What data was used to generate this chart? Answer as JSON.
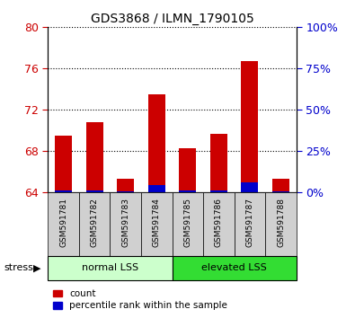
{
  "title": "GDS3868 / ILMN_1790105",
  "samples": [
    "GSM591781",
    "GSM591782",
    "GSM591783",
    "GSM591784",
    "GSM591785",
    "GSM591786",
    "GSM591787",
    "GSM591788"
  ],
  "red_top": [
    69.5,
    70.8,
    65.3,
    73.5,
    68.3,
    69.7,
    76.7,
    65.3
  ],
  "blue_top": [
    64.15,
    64.2,
    64.1,
    64.7,
    64.15,
    64.2,
    65.0,
    64.1
  ],
  "baseline": 64.0,
  "ylim_left": [
    64,
    80
  ],
  "yticks_left": [
    64,
    68,
    72,
    76,
    80
  ],
  "ylim_right": [
    0,
    100
  ],
  "yticks_right": [
    0,
    25,
    50,
    75,
    100
  ],
  "ytick_labels_right": [
    "0%",
    "25%",
    "50%",
    "75%",
    "100%"
  ],
  "group1_label": "normal LSS",
  "group2_label": "elevated LSS",
  "stress_label": "stress",
  "legend_count": "count",
  "legend_pct": "percentile rank within the sample",
  "bar_width": 0.55,
  "red_color": "#cc0000",
  "blue_color": "#0000cc",
  "group1_bg": "#ccffcc",
  "group2_bg": "#33dd33",
  "tick_color_left": "#cc0000",
  "tick_color_right": "#0000cc",
  "bg_plot": "#ffffff",
  "bg_xtick": "#d0d0d0"
}
